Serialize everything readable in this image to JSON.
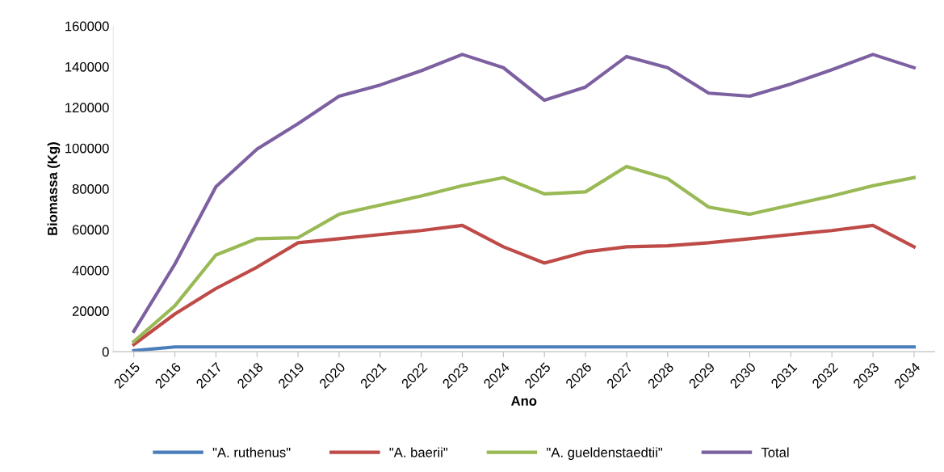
{
  "chart_data": {
    "type": "line",
    "xlabel": "Ano",
    "ylabel": "Biomassa (Kg)",
    "categories": [
      "2015",
      "2016",
      "2017",
      "2018",
      "2019",
      "2020",
      "2021",
      "2022",
      "2023",
      "2024",
      "2025",
      "2026",
      "2027",
      "2028",
      "2029",
      "2030",
      "2031",
      "2032",
      "2033",
      "2034"
    ],
    "series": [
      {
        "name": "\"A. ruthenus\"",
        "color": "#4a7ebb",
        "values": [
          500,
          2300,
          2300,
          2300,
          2300,
          2300,
          2300,
          2300,
          2300,
          2300,
          2300,
          2300,
          2300,
          2300,
          2300,
          2300,
          2300,
          2300,
          2300,
          2300
        ]
      },
      {
        "name": "\"A. baerii\"",
        "color": "#be4b48",
        "values": [
          3500,
          18500,
          31000,
          41500,
          53500,
          55500,
          57500,
          59500,
          62000,
          51500,
          43500,
          49000,
          51500,
          52000,
          53500,
          55500,
          57500,
          59500,
          62000,
          51500
        ]
      },
      {
        "name": "\"A. gueldenstaedtii\"",
        "color": "#98b954",
        "values": [
          5000,
          22500,
          47500,
          55500,
          56000,
          67500,
          72000,
          76500,
          81500,
          85500,
          77500,
          78500,
          91000,
          85000,
          71000,
          67500,
          72000,
          76500,
          81500,
          85500
        ]
      },
      {
        "name": "Total",
        "color": "#7d60a0",
        "values": [
          10000,
          43000,
          81000,
          99500,
          112000,
          125500,
          131000,
          138000,
          146000,
          139500,
          123500,
          130000,
          145000,
          139500,
          127000,
          125500,
          131500,
          138500,
          146000,
          139500
        ]
      }
    ],
    "ylim": [
      0,
      160000
    ],
    "yticks": [
      0,
      20000,
      40000,
      60000,
      80000,
      100000,
      120000,
      140000,
      160000
    ],
    "legend": "bottom",
    "grid": false,
    "marker": "none",
    "line_style": "solid"
  }
}
